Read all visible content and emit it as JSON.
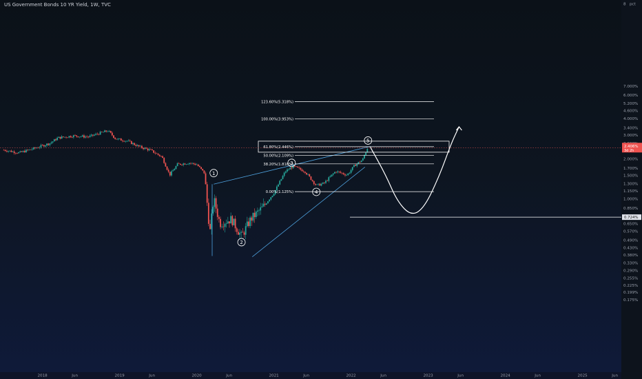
{
  "header": {
    "title": "US Government Bonds 10 YR Yield, 1W, TVC"
  },
  "colors": {
    "up": "#26a69a",
    "down": "#ef5350",
    "wave_channel": "#4fa3e0",
    "fib_line": "#ffffff",
    "projection": "#ffffff",
    "current_price": "#ef5350",
    "background_top": "#0b1118",
    "background_bottom": "#0f1a3a"
  },
  "chart_data": {
    "type": "candlestick",
    "title": "US Government Bonds 10 YR Yield, 1W, TVC",
    "scale": "log",
    "unit_label": "pct",
    "y_ticks": [
      "8",
      "7.000%",
      "6.000%",
      "5.200%",
      "4.600%",
      "4.000%",
      "3.400%",
      "3.000%",
      "2.600%",
      "2.000%",
      "1.700%",
      "1.500%",
      "1.300%",
      "1.150%",
      "1.000%",
      "0.850%",
      "0.725%",
      "0.650%",
      "0.570%",
      "0.490%",
      "0.430%",
      "0.380%",
      "0.330%",
      "0.290%",
      "0.255%",
      "0.225%",
      "0.199%",
      "0.175%"
    ],
    "x_ticks": [
      "2018",
      "Jun",
      "2019",
      "Jun",
      "2020",
      "Jun",
      "2021",
      "Jun",
      "2022",
      "Jun",
      "2023",
      "Jun",
      "2024",
      "Jun",
      "2025",
      "Jun"
    ],
    "current_price": {
      "label": "2.406%",
      "sublabel": "3d 2h",
      "value": 2.406
    },
    "horizontal_marker": {
      "label": "0.724%",
      "value": 0.724
    },
    "price_path": [
      {
        "t": 2017.5,
        "v": 2.31
      },
      {
        "t": 2017.7,
        "v": 2.2
      },
      {
        "t": 2017.9,
        "v": 2.38
      },
      {
        "t": 2018.1,
        "v": 2.6
      },
      {
        "t": 2018.2,
        "v": 2.85
      },
      {
        "t": 2018.4,
        "v": 2.95
      },
      {
        "t": 2018.6,
        "v": 2.9
      },
      {
        "t": 2018.75,
        "v": 3.1
      },
      {
        "t": 2018.85,
        "v": 3.22
      },
      {
        "t": 2018.95,
        "v": 2.8
      },
      {
        "t": 2019.1,
        "v": 2.7
      },
      {
        "t": 2019.25,
        "v": 2.45
      },
      {
        "t": 2019.4,
        "v": 2.3
      },
      {
        "t": 2019.55,
        "v": 2.05
      },
      {
        "t": 2019.65,
        "v": 1.5
      },
      {
        "t": 2019.75,
        "v": 1.8
      },
      {
        "t": 2019.9,
        "v": 1.85
      },
      {
        "t": 2020.0,
        "v": 1.8
      },
      {
        "t": 2020.1,
        "v": 1.55
      },
      {
        "t": 2020.17,
        "v": 0.55
      },
      {
        "t": 2020.22,
        "v": 1.0
      },
      {
        "t": 2020.3,
        "v": 0.65
      },
      {
        "t": 2020.45,
        "v": 0.7
      },
      {
        "t": 2020.58,
        "v": 0.52
      },
      {
        "t": 2020.7,
        "v": 0.7
      },
      {
        "t": 2020.85,
        "v": 0.85
      },
      {
        "t": 2021.0,
        "v": 1.1
      },
      {
        "t": 2021.15,
        "v": 1.6
      },
      {
        "t": 2021.25,
        "v": 1.74
      },
      {
        "t": 2021.4,
        "v": 1.6
      },
      {
        "t": 2021.55,
        "v": 1.25
      },
      {
        "t": 2021.65,
        "v": 1.3
      },
      {
        "t": 2021.8,
        "v": 1.6
      },
      {
        "t": 2021.95,
        "v": 1.5
      },
      {
        "t": 2022.05,
        "v": 1.78
      },
      {
        "t": 2022.15,
        "v": 1.95
      },
      {
        "t": 2022.22,
        "v": 2.45
      }
    ],
    "fib_levels": [
      {
        "label": "123.60%(5.318%)",
        "value": 5.318
      },
      {
        "label": "100.00%(3.953%)",
        "value": 3.953
      },
      {
        "label": "61.80%(2.446%)",
        "value": 2.446
      },
      {
        "label": "50.00%(2.109%)",
        "value": 2.109
      },
      {
        "label": "38.20%(1.818%)",
        "value": 1.818
      },
      {
        "label": "0.00%(1.125%)",
        "value": 1.125
      }
    ],
    "wave_labels": [
      {
        "label": "1",
        "t": 2020.22,
        "v": 1.55
      },
      {
        "label": "2",
        "t": 2020.58,
        "v": 0.47
      },
      {
        "label": "3",
        "t": 2021.23,
        "v": 1.85
      },
      {
        "label": "4",
        "t": 2021.55,
        "v": 1.12
      },
      {
        "label": "5",
        "t": 2022.22,
        "v": 2.72
      }
    ],
    "projection_path": [
      {
        "t": 2022.25,
        "v": 2.43
      },
      {
        "t": 2022.45,
        "v": 1.5
      },
      {
        "t": 2022.6,
        "v": 0.95
      },
      {
        "t": 2022.78,
        "v": 0.74
      },
      {
        "t": 2022.95,
        "v": 0.85
      },
      {
        "t": 2023.15,
        "v": 1.5
      },
      {
        "t": 2023.3,
        "v": 2.6
      },
      {
        "t": 2023.4,
        "v": 3.45
      }
    ],
    "channel": [
      {
        "t1": 2020.22,
        "v1": 1.28,
        "t2": 2022.25,
        "v2": 2.46
      },
      {
        "t1": 2020.72,
        "v1": 0.365,
        "t2": 2022.18,
        "v2": 1.72
      }
    ]
  }
}
